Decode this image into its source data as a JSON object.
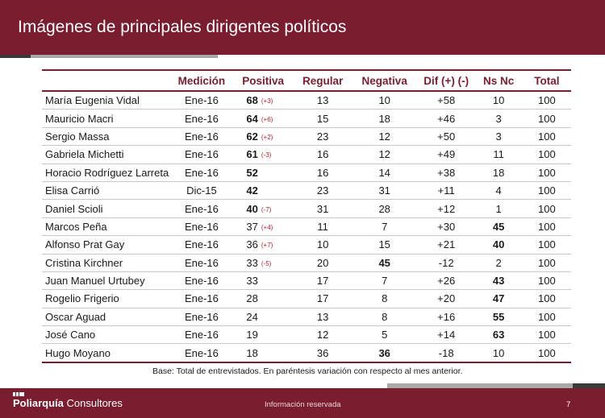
{
  "header": {
    "title": "Imágenes de principales dirigentes políticos"
  },
  "table": {
    "columns": [
      "",
      "Medición",
      "Positiva",
      "Regular",
      "Negativa",
      "Dif (+) (-)",
      "Ns Nc",
      "Total"
    ],
    "rows": [
      {
        "name": "María Eugenia Vidal",
        "medicion": "Ene-16",
        "positiva": "68",
        "positiva_bold": true,
        "cambio": "(+3)",
        "regular": "13",
        "negativa": "10",
        "negativa_bold": false,
        "dif": "+58",
        "nsnc": "10",
        "nsnc_bold": false,
        "total": "100"
      },
      {
        "name": "Mauricio Macri",
        "medicion": "Ene-16",
        "positiva": "64",
        "positiva_bold": true,
        "cambio": "(+6)",
        "regular": "15",
        "negativa": "18",
        "negativa_bold": false,
        "dif": "+46",
        "nsnc": "3",
        "nsnc_bold": false,
        "total": "100"
      },
      {
        "name": "Sergio Massa",
        "medicion": "Ene-16",
        "positiva": "62",
        "positiva_bold": true,
        "cambio": "(+2)",
        "regular": "23",
        "negativa": "12",
        "negativa_bold": false,
        "dif": "+50",
        "nsnc": "3",
        "nsnc_bold": false,
        "total": "100"
      },
      {
        "name": "Gabriela Michetti",
        "medicion": "Ene-16",
        "positiva": "61",
        "positiva_bold": true,
        "cambio": "(-3)",
        "regular": "16",
        "negativa": "12",
        "negativa_bold": false,
        "dif": "+49",
        "nsnc": "11",
        "nsnc_bold": false,
        "total": "100"
      },
      {
        "name": "Horacio Rodríguez Larreta",
        "medicion": "Ene-16",
        "positiva": "52",
        "positiva_bold": true,
        "cambio": "",
        "regular": "16",
        "negativa": "14",
        "negativa_bold": false,
        "dif": "+38",
        "nsnc": "18",
        "nsnc_bold": false,
        "total": "100"
      },
      {
        "name": "Elisa Carrió",
        "medicion": "Dic-15",
        "positiva": "42",
        "positiva_bold": true,
        "cambio": "",
        "regular": "23",
        "negativa": "31",
        "negativa_bold": false,
        "dif": "+11",
        "nsnc": "4",
        "nsnc_bold": false,
        "total": "100"
      },
      {
        "name": "Daniel Scioli",
        "medicion": "Ene-16",
        "positiva": "40",
        "positiva_bold": true,
        "cambio": "(-7)",
        "regular": "31",
        "negativa": "28",
        "negativa_bold": false,
        "dif": "+12",
        "nsnc": "1",
        "nsnc_bold": false,
        "total": "100"
      },
      {
        "name": "Marcos Peña",
        "medicion": "Ene-16",
        "positiva": "37",
        "positiva_bold": false,
        "cambio": "(+4)",
        "regular": "11",
        "negativa": "7",
        "negativa_bold": false,
        "dif": "+30",
        "nsnc": "45",
        "nsnc_bold": true,
        "total": "100"
      },
      {
        "name": "Alfonso Prat Gay",
        "medicion": "Ene-16",
        "positiva": "36",
        "positiva_bold": false,
        "cambio": "(+7)",
        "regular": "10",
        "negativa": "15",
        "negativa_bold": false,
        "dif": "+21",
        "nsnc": "40",
        "nsnc_bold": true,
        "total": "100"
      },
      {
        "name": "Cristina Kirchner",
        "medicion": "Ene-16",
        "positiva": "33",
        "positiva_bold": false,
        "cambio": "(-5)",
        "regular": "20",
        "negativa": "45",
        "negativa_bold": true,
        "dif": "-12",
        "nsnc": "2",
        "nsnc_bold": false,
        "total": "100"
      },
      {
        "name": "Juan Manuel Urtubey",
        "medicion": "Ene-16",
        "positiva": "33",
        "positiva_bold": false,
        "cambio": "",
        "regular": "17",
        "negativa": "7",
        "negativa_bold": false,
        "dif": "+26",
        "nsnc": "43",
        "nsnc_bold": true,
        "total": "100"
      },
      {
        "name": "Rogelio Frigerio",
        "medicion": "Ene-16",
        "positiva": "28",
        "positiva_bold": false,
        "cambio": "",
        "regular": "17",
        "negativa": "8",
        "negativa_bold": false,
        "dif": "+20",
        "nsnc": "47",
        "nsnc_bold": true,
        "total": "100"
      },
      {
        "name": "Oscar Aguad",
        "medicion": "Ene-16",
        "positiva": "24",
        "positiva_bold": false,
        "cambio": "",
        "regular": "13",
        "negativa": "8",
        "negativa_bold": false,
        "dif": "+16",
        "nsnc": "55",
        "nsnc_bold": true,
        "total": "100"
      },
      {
        "name": "José Cano",
        "medicion": "Ene-16",
        "positiva": "19",
        "positiva_bold": false,
        "cambio": "",
        "regular": "12",
        "negativa": "5",
        "negativa_bold": false,
        "dif": "+14",
        "nsnc": "63",
        "nsnc_bold": true,
        "total": "100"
      },
      {
        "name": "Hugo Moyano",
        "medicion": "Ene-16",
        "positiva": "18",
        "positiva_bold": false,
        "cambio": "",
        "regular": "36",
        "negativa": "36",
        "negativa_bold": true,
        "dif": "-18",
        "nsnc": "10",
        "nsnc_bold": false,
        "total": "100"
      }
    ]
  },
  "note": "Base: Total de entrevistados. En paréntesis variación con respecto al mes anterior.",
  "footer": {
    "brand": "Poliarquía",
    "brand_sub": "Consultores",
    "confidential": "Información reservada",
    "page": "7"
  },
  "colors": {
    "accent": "#7a1d2e",
    "change": "#b01c2e",
    "stripe_gray": "#a8a8a8",
    "stripe_dark": "#3a3a3a"
  }
}
